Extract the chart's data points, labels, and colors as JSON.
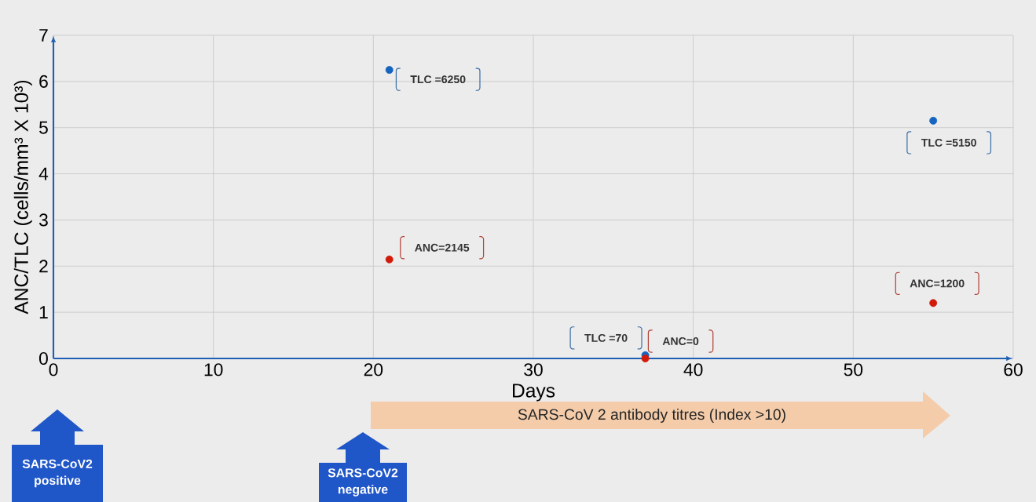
{
  "chart_data": {
    "type": "scatter",
    "x": [
      21,
      37,
      55
    ],
    "series": [
      {
        "color": "#1565c0",
        "values": [
          6.25,
          0.07,
          5.15
        ]
      },
      {
        "color": "#d11a0a",
        "values": [
          2.145,
          0,
          1.2
        ]
      }
    ],
    "xlabel": "Days",
    "ylabel": "ANC/TLC (cells/mm³ X 10³)",
    "xlim": [
      0,
      60
    ],
    "xticks": [
      0,
      10,
      20,
      30,
      40,
      50,
      60
    ],
    "ylim": [
      0,
      7
    ],
    "yticks": [
      0,
      1,
      2,
      3,
      4,
      5,
      6,
      7
    ],
    "grid": true,
    "marker": "circle",
    "annotations": [
      {
        "text": "TLC =6250",
        "x": 21,
        "y": 6.25
      },
      {
        "text": "ANC=2145",
        "x": 21,
        "y": 2.145
      },
      {
        "text": "TLC =70",
        "x": 37,
        "y": 0.07
      },
      {
        "text": "ANC=0",
        "x": 37,
        "y": 0
      },
      {
        "text": "TLC =5150",
        "x": 55,
        "y": 5.15
      },
      {
        "text": "ANC=1200",
        "x": 55,
        "y": 1.2
      },
      "SARS-CoV 2 antibody titres (Index >10)",
      "SARS-CoV2 positive",
      "SARS-CoV2 negative"
    ]
  }
}
